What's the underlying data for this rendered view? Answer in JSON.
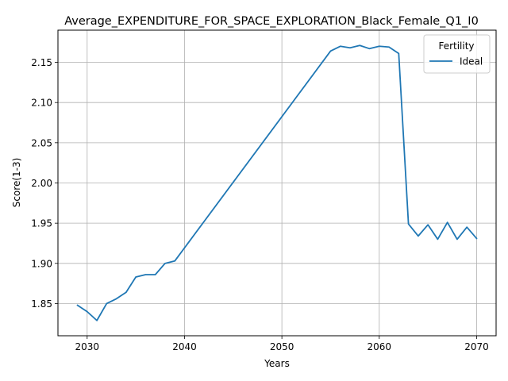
{
  "chart_data": {
    "type": "line",
    "title": "Average_EXPENDITURE_FOR_SPACE_EXPLORATION_Black_Female_Q1_I0",
    "xlabel": "Years",
    "ylabel": "Score(1-3)",
    "xlim": [
      2027,
      2072
    ],
    "ylim": [
      1.81,
      2.19
    ],
    "xticks": [
      2030,
      2040,
      2050,
      2060,
      2070
    ],
    "yticks": [
      1.85,
      1.9,
      1.95,
      2.0,
      2.05,
      2.1,
      2.15
    ],
    "xtick_labels": [
      "2030",
      "2040",
      "2050",
      "2060",
      "2070"
    ],
    "ytick_labels": [
      "1.85",
      "1.90",
      "1.95",
      "2.00",
      "2.05",
      "2.10",
      "2.15"
    ],
    "grid": true,
    "legend": {
      "title": "Fertility",
      "position": "top-right"
    },
    "series": [
      {
        "name": "Ideal",
        "color": "#1f77b4",
        "x": [
          2029,
          2030,
          2031,
          2032,
          2033,
          2034,
          2035,
          2036,
          2037,
          2038,
          2039,
          2055,
          2056,
          2057,
          2058,
          2059,
          2060,
          2061,
          2062,
          2063,
          2064,
          2065,
          2066,
          2067,
          2068,
          2069,
          2070
        ],
        "y": [
          1.848,
          1.84,
          1.829,
          1.85,
          1.856,
          1.864,
          1.883,
          1.886,
          1.886,
          1.9,
          1.903,
          2.164,
          2.17,
          2.168,
          2.171,
          2.167,
          2.17,
          2.169,
          2.161,
          1.949,
          1.934,
          1.948,
          1.93,
          1.951,
          1.93,
          1.945,
          1.931
        ]
      }
    ]
  }
}
